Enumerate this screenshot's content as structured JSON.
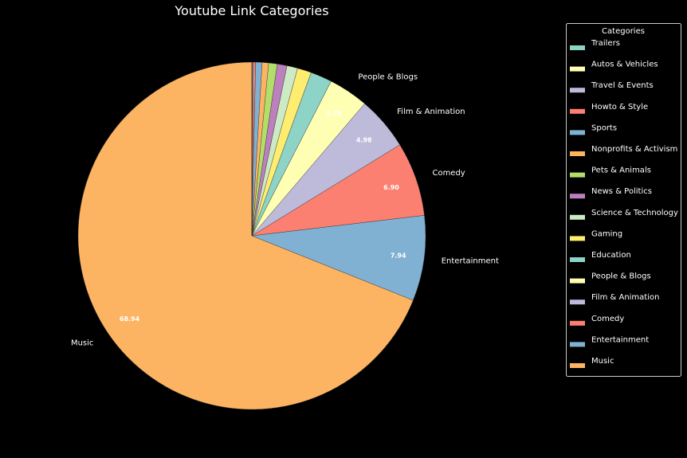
{
  "chart_data": {
    "type": "pie",
    "title": "Youtube Link Categories",
    "legend_title": "Categories",
    "legend_placement": "right",
    "categories": [
      "Music",
      "Entertainment",
      "Comedy",
      "Film & Animation",
      "People & Blogs",
      "Education",
      "Gaming",
      "Science & Technology",
      "News & Politics",
      "Pets & Animals",
      "Nonprofits & Activism",
      "Sports",
      "Howto & Style",
      "Travel & Events",
      "Autos & Vehicles",
      "Trailers"
    ],
    "values": [
      68.94,
      7.94,
      6.9,
      4.98,
      3.7,
      2.0,
      1.3,
      1.0,
      0.9,
      0.8,
      0.6,
      0.6,
      0.2,
      0.08,
      0.05,
      0.01
    ],
    "value_labels": [
      "68.94",
      "7.94",
      "6.90",
      "4.98",
      "3.70",
      "",
      "",
      "",
      "",
      "",
      "",
      "",
      "",
      "",
      "",
      ""
    ],
    "slice_labels": [
      "Music",
      "Entertainment",
      "Comedy",
      "Film & Animation",
      "People & Blogs",
      "",
      "",
      "",
      "",
      "",
      "",
      "",
      "",
      "",
      "",
      ""
    ],
    "colors": [
      "#fdb462",
      "#80b1d3",
      "#fb8072",
      "#bebada",
      "#ffffb3",
      "#8dd3c7",
      "#ffed6f",
      "#ccebc5",
      "#bc80bd",
      "#b3de69",
      "#fdb462",
      "#80b1d3",
      "#fb8072",
      "#bebada",
      "#ffffb3",
      "#8dd3c7"
    ]
  }
}
